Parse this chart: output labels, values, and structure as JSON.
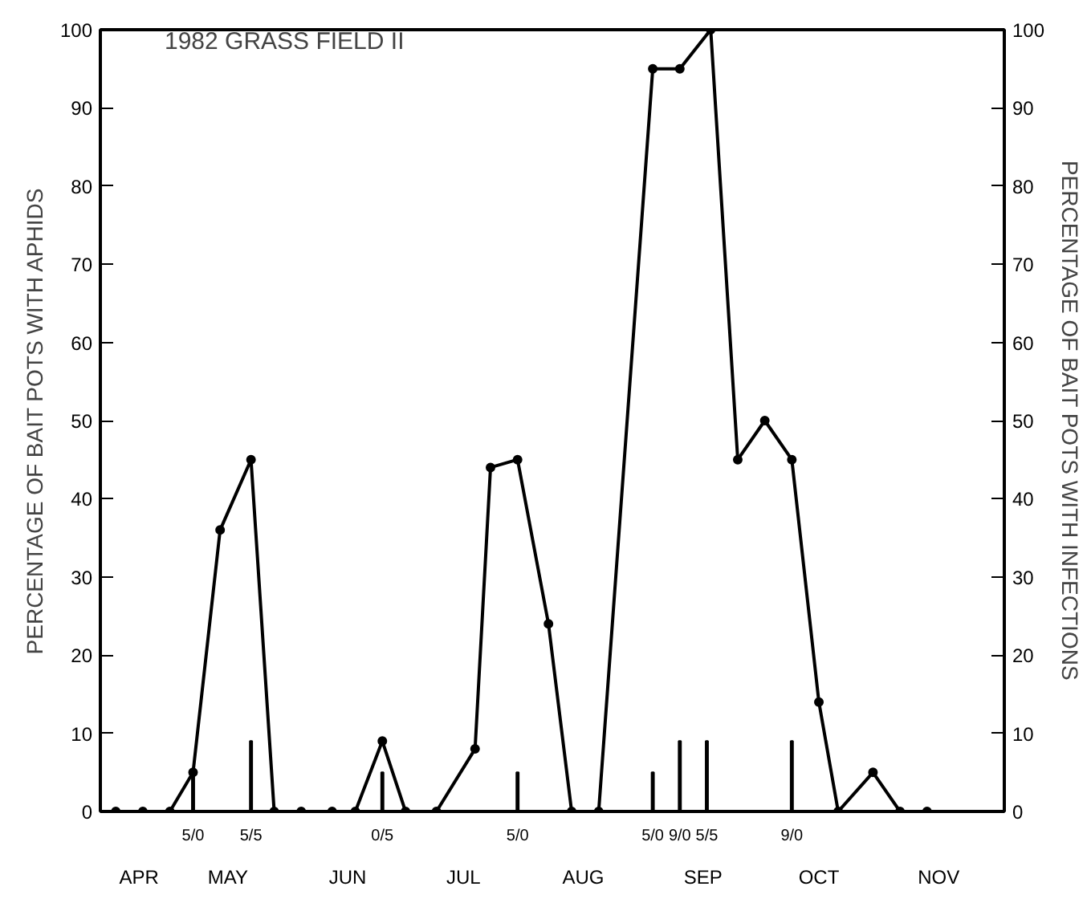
{
  "chart_data": {
    "type": "line",
    "ylabel": "PERCENTAGE OF BAIT POTS WITH APHIDS",
    "y2label": "PERCENTAGE OF BAIT POTS WITH INFECTIONS",
    "annotations": [
      "1982 GRASS FIELD II",
      {
        "text": "5/0",
        "x": "1982-05-06",
        "y": 0
      },
      {
        "text": "5/5",
        "x": "1982-05-21",
        "y": 0
      },
      {
        "text": "0/5",
        "x": "1982-06-24",
        "y": 0
      },
      {
        "text": "5/0",
        "x": "1982-07-29",
        "y": 0
      },
      {
        "text": "5/0",
        "x": "1982-09-02",
        "y": 0
      },
      {
        "text": "9/0",
        "x": "1982-09-09",
        "y": 0
      },
      {
        "text": "5/5",
        "x": "1982-09-16",
        "y": 0
      },
      {
        "text": "9/0",
        "x": "1982-10-08",
        "y": 0
      }
    ],
    "x": [
      "1982-04-16",
      "1982-04-23",
      "1982-04-30",
      "1982-05-06",
      "1982-05-13",
      "1982-05-21",
      "1982-05-27",
      "1982-06-03",
      "1982-06-11",
      "1982-06-17",
      "1982-06-24",
      "1982-06-30",
      "1982-07-08",
      "1982-07-18",
      "1982-07-22",
      "1982-07-29",
      "1982-08-06",
      "1982-08-12",
      "1982-08-19",
      "1982-09-02",
      "1982-09-09",
      "1982-09-17",
      "1982-09-24",
      "1982-10-01",
      "1982-10-08",
      "1982-10-15",
      "1982-10-20",
      "1982-10-29",
      "1982-11-05",
      "1982-11-12"
    ],
    "series": [
      {
        "color": "#000000",
        "values": [
          0,
          0,
          0,
          5,
          36,
          45,
          0,
          0,
          0,
          0,
          9,
          0,
          0,
          8,
          44,
          45,
          24,
          0,
          0,
          95,
          95,
          100,
          45,
          50,
          45,
          14,
          0,
          5,
          0,
          0
        ]
      },
      {
        "type": "bar",
        "axis": "y2",
        "color": "#000000",
        "x": [
          "1982-05-06",
          "1982-05-21",
          "1982-06-24",
          "1982-07-29",
          "1982-09-02",
          "1982-09-09",
          "1982-09-16",
          "1982-10-08"
        ],
        "values": [
          5,
          9,
          5,
          5,
          5,
          9,
          9,
          9
        ]
      }
    ],
    "xlim": [
      "1982-04-12",
      "1982-12-02"
    ],
    "xticks": [
      {
        "value": "1982-04-22",
        "label": "APR"
      },
      {
        "value": "1982-05-15",
        "label": "MAY"
      },
      {
        "value": "1982-06-15",
        "label": "JUN"
      },
      {
        "value": "1982-07-15",
        "label": "JUL"
      },
      {
        "value": "1982-08-15",
        "label": "AUG"
      },
      {
        "value": "1982-09-15",
        "label": "SEP"
      },
      {
        "value": "1982-10-15",
        "label": "OCT"
      },
      {
        "value": "1982-11-15",
        "label": "NOV"
      }
    ],
    "ylim": [
      0,
      100
    ],
    "yticks": [
      0,
      10,
      20,
      30,
      40,
      50,
      60,
      70,
      80,
      90,
      100
    ],
    "y2lim": [
      0,
      100
    ],
    "y2ticks": [
      0,
      10,
      20,
      30,
      40,
      50,
      60,
      70,
      80,
      90,
      100
    ],
    "marker": "circle",
    "line_style": "solid",
    "grid": false
  }
}
